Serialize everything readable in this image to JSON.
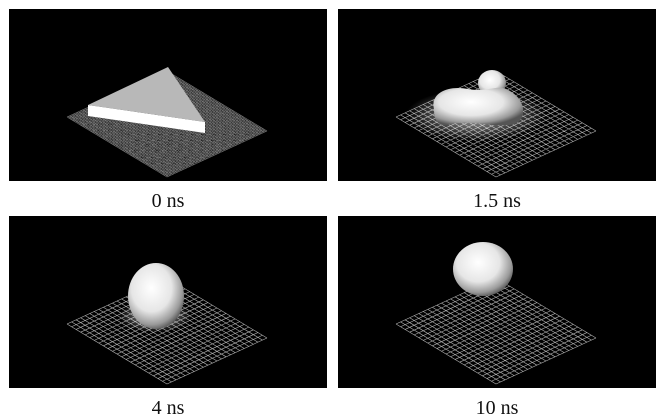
{
  "panels": [
    {
      "caption": "0 ns"
    },
    {
      "caption": "1.5 ns"
    },
    {
      "caption": "4 ns"
    },
    {
      "caption": "10 ns"
    }
  ]
}
